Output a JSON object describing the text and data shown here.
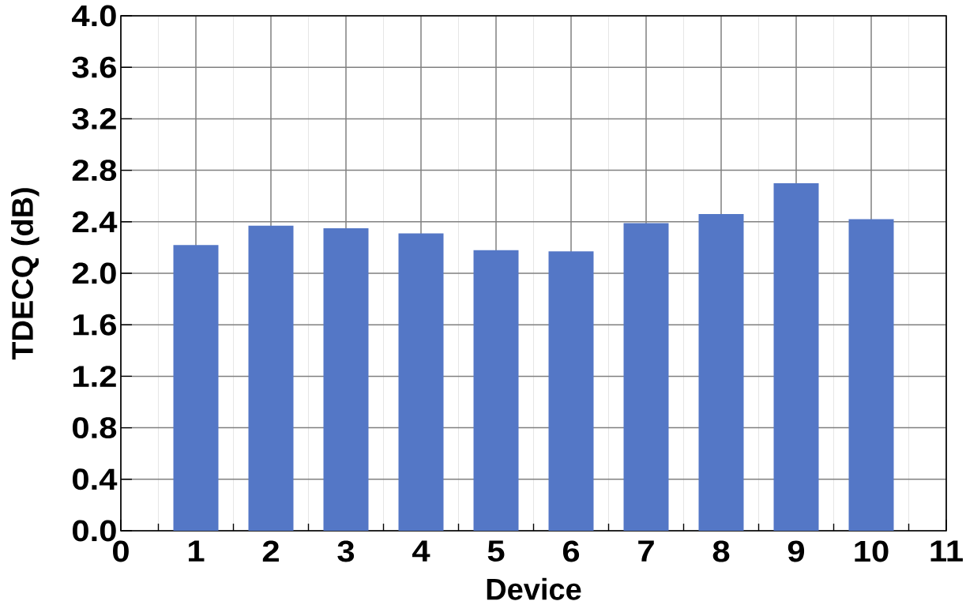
{
  "chart_data": {
    "type": "bar",
    "xlabel": "Device",
    "ylabel": "TDECQ (dB)",
    "x": [
      1,
      2,
      3,
      4,
      5,
      6,
      7,
      8,
      9,
      10
    ],
    "values": [
      2.22,
      2.37,
      2.35,
      2.31,
      2.18,
      2.17,
      2.39,
      2.46,
      2.7,
      2.42
    ],
    "color": "#5477c6",
    "xlim": [
      0,
      11
    ],
    "xticks": [
      0,
      1,
      2,
      3,
      4,
      5,
      6,
      7,
      8,
      9,
      10,
      11
    ],
    "ylim": [
      0,
      4.0
    ],
    "yticks": [
      {
        "value": 0,
        "label": "0.0"
      },
      0.4,
      0.8,
      1.2,
      1.6,
      {
        "value": 2,
        "label": "2.0"
      },
      2.4,
      2.8,
      3.2,
      3.6,
      {
        "value": 4,
        "label": "4.0"
      }
    ],
    "grid": true
  }
}
